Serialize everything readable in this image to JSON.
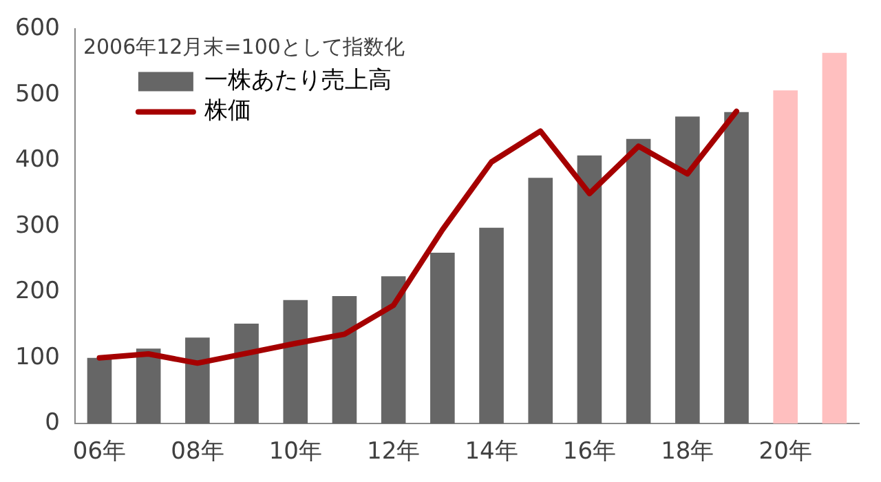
{
  "chart_data": {
    "type": "bar",
    "categories": [
      "06年",
      null,
      "08年",
      null,
      "10年",
      null,
      "12年",
      null,
      "14年",
      null,
      "16年",
      null,
      "18年",
      null,
      "20年",
      null
    ],
    "series": [
      {
        "name": "一株あたり売上高",
        "color": "#666666",
        "colors": [
          "#666666",
          "#666666",
          "#666666",
          "#666666",
          "#666666",
          "#666666",
          "#666666",
          "#666666",
          "#666666",
          "#666666",
          "#666666",
          "#666666",
          "#666666",
          "#666666",
          "#ffbfbf",
          "#ffbfbf"
        ],
        "values": [
          100,
          114,
          131,
          152,
          188,
          194,
          224,
          260,
          298,
          374,
          408,
          433,
          467,
          474,
          507,
          564
        ]
      },
      {
        "name": "株価",
        "type": "line",
        "color": "#a50000",
        "values": [
          100,
          106,
          92,
          107,
          122,
          136,
          180,
          295,
          398,
          445,
          350,
          422,
          380,
          475,
          null,
          null
        ]
      }
    ],
    "annotations": [
      "2006年12月末=100として指数化"
    ],
    "ylim": [
      0,
      600
    ],
    "yticks": [
      0,
      100,
      200,
      300,
      400,
      500,
      600
    ],
    "grid": false,
    "legend": "top left",
    "marker": "none"
  }
}
